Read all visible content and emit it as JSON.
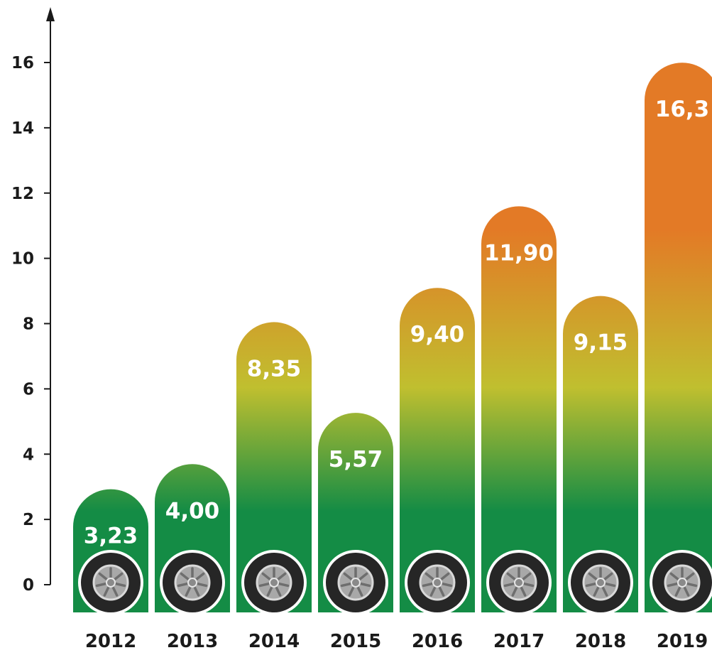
{
  "chart_data": {
    "type": "bar",
    "title": "",
    "xlabel": "",
    "ylabel": "",
    "categories": [
      "2012",
      "2013",
      "2014",
      "2015",
      "2016",
      "2017",
      "2018",
      "2019"
    ],
    "values": [
      3.23,
      4.0,
      8.35,
      5.57,
      9.4,
      11.9,
      9.15,
      16.3
    ],
    "value_labels": [
      "3,23",
      "4,00",
      "8,35",
      "5,57",
      "9,40",
      "11,90",
      "9,15",
      "16,3"
    ],
    "ylim": [
      0,
      17
    ],
    "y_ticks": [
      "0",
      "2",
      "4",
      "6",
      "8",
      "10",
      "12",
      "14",
      "16"
    ],
    "grid": false,
    "legend": "none",
    "bar_icon": "tire-icon",
    "colors": {
      "gradient_top": "#e37a26",
      "gradient_mid": "#c0bf2f",
      "gradient_bottom": "#148c45",
      "tire": "#262626",
      "rim": "#a8a8a8",
      "text": "#1a1a1a",
      "value_text": "#ffffff"
    }
  }
}
